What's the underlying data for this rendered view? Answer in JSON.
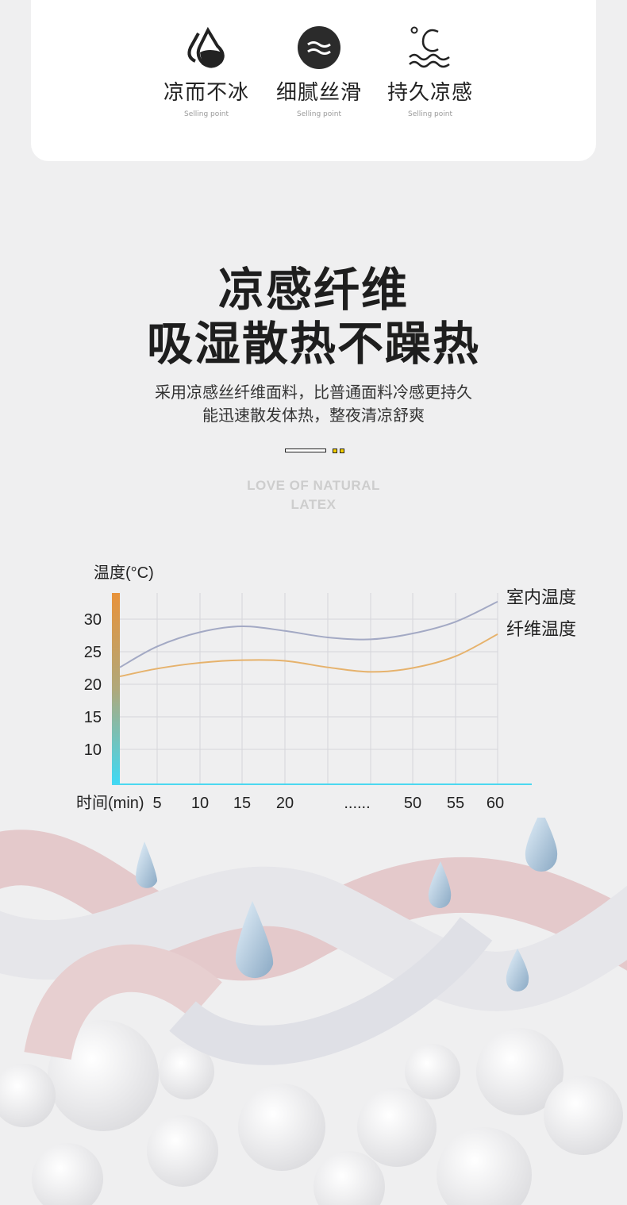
{
  "features": [
    {
      "icon": "water-drops-icon",
      "label": "凉而不冰",
      "sub": "Selling point"
    },
    {
      "icon": "waves-circle-icon",
      "label": "细腻丝滑",
      "sub": "Selling point"
    },
    {
      "icon": "temperature-waves-icon",
      "label": "持久凉感",
      "sub": "Selling point"
    }
  ],
  "headline": {
    "line1": "凉感纤维",
    "line2": "吸湿散热不躁热"
  },
  "description": {
    "line1": "采用凉感丝纤维面料，比普通面料冷感更持久",
    "line2": "能迅速散发体热，整夜清凉舒爽"
  },
  "watermark": {
    "line1": "LOVE OF NATURAL",
    "line2": "LATEX"
  },
  "colors": {
    "accent_dot": "#f2cd00",
    "indoor_line": "#a3a9c4",
    "fiber_line": "#e6b26c",
    "axis_top": "#e8923a",
    "axis_bottom": "#3fd9f5"
  },
  "chart_data": {
    "type": "line",
    "ylabel": "温度(°C)",
    "xlabel": "时间(min)",
    "x_ticks": [
      "5",
      "10",
      "15",
      "20",
      "......",
      "50",
      "55",
      "60"
    ],
    "y_ticks": [
      10,
      15,
      20,
      25,
      30
    ],
    "ylim": [
      5,
      33
    ],
    "grid": true,
    "legend_position": "right",
    "x": [
      0,
      "5",
      "10",
      "15",
      "20",
      "25",
      "......",
      "50",
      "55",
      "60"
    ],
    "series": [
      {
        "name": "室内温度",
        "values": [
          22.6,
          25.8,
          28.0,
          28.9,
          28.2,
          27.2,
          26.9,
          27.8,
          29.6,
          32.7
        ]
      },
      {
        "name": "纤维温度",
        "values": [
          21.2,
          22.4,
          23.3,
          23.7,
          23.6,
          22.6,
          21.9,
          22.5,
          24.3,
          27.7
        ]
      }
    ]
  }
}
